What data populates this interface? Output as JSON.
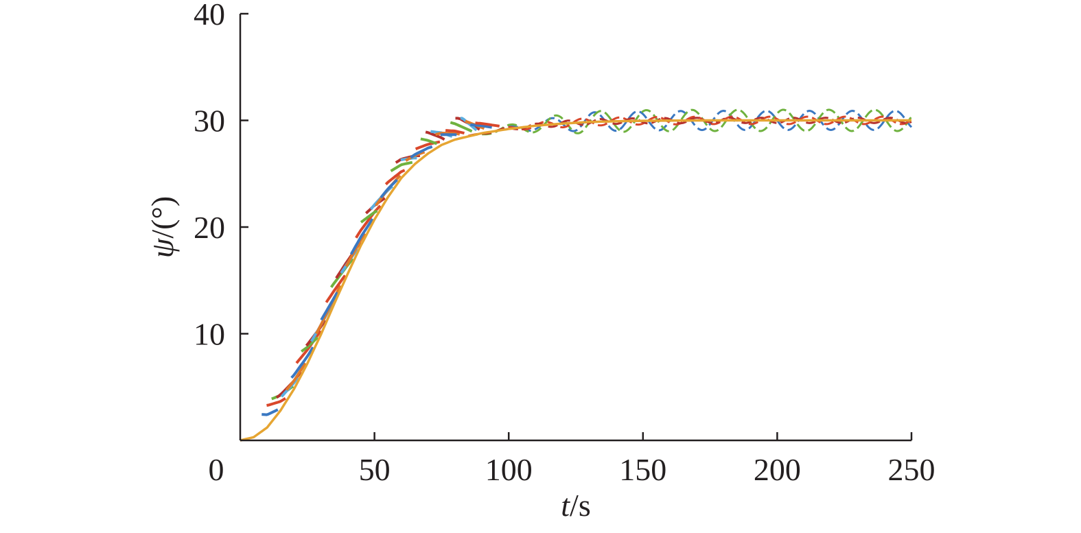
{
  "chart_data": {
    "type": "line",
    "xlabel": {
      "var": "t",
      "unit": "/s"
    },
    "ylabel": {
      "var": "ψ",
      "unit": "/(°)"
    },
    "xlim": [
      0,
      250
    ],
    "ylim": [
      0,
      40
    ],
    "x_ticks": [
      "0",
      "50",
      "100",
      "150",
      "200",
      "250"
    ],
    "y_ticks": [
      "10",
      "20",
      "30",
      "40"
    ],
    "grid": false,
    "legend": "none",
    "reference_final_value": 30,
    "reference_curve": {
      "color": "#e6a532",
      "points": [
        [
          0,
          0
        ],
        [
          5,
          0.3
        ],
        [
          10,
          1.2
        ],
        [
          15,
          2.8
        ],
        [
          20,
          4.8
        ],
        [
          25,
          7.2
        ],
        [
          30,
          9.9
        ],
        [
          35,
          12.8
        ],
        [
          40,
          15.6
        ],
        [
          45,
          18.3
        ],
        [
          50,
          20.7
        ],
        [
          55,
          22.8
        ],
        [
          60,
          24.6
        ],
        [
          65,
          25.9
        ],
        [
          70,
          26.9
        ],
        [
          75,
          27.7
        ],
        [
          80,
          28.2
        ],
        [
          90,
          28.8
        ],
        [
          100,
          29.2
        ],
        [
          110,
          29.5
        ],
        [
          120,
          29.7
        ],
        [
          130,
          29.85
        ],
        [
          140,
          29.92
        ],
        [
          150,
          29.96
        ],
        [
          175,
          30.0
        ],
        [
          200,
          30.0
        ],
        [
          250,
          30.0
        ]
      ]
    },
    "series_colors": [
      "#3a78c2",
      "#d9472b",
      "#6fb23f",
      "#b5322e",
      "#5aaee0",
      "#e07a2a"
    ]
  }
}
